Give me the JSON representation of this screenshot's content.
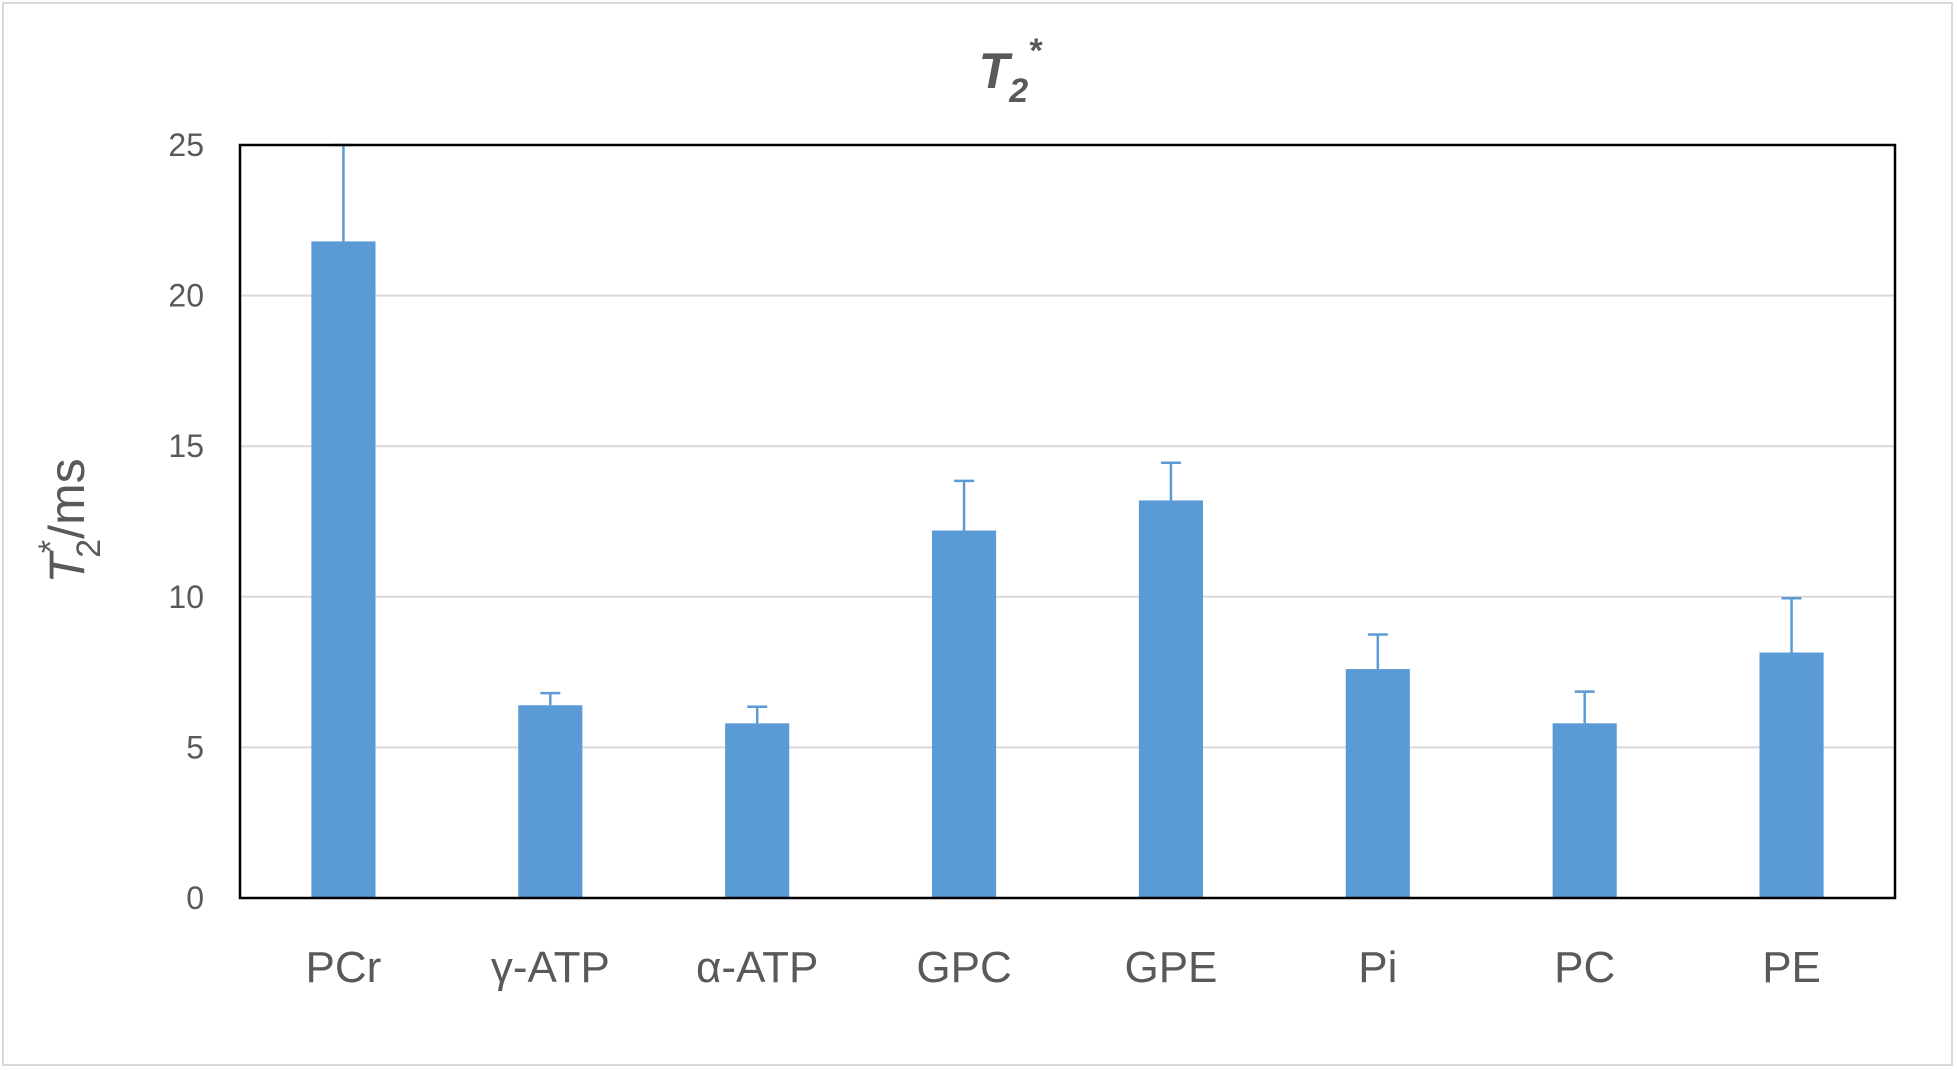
{
  "chart_data": {
    "type": "bar",
    "title": {
      "main": "T",
      "sub": "2",
      "sup": "*"
    },
    "ylabel": {
      "main": "T",
      "sub": "2",
      "sup": "*",
      "unit": "/ms"
    },
    "xlabel": "",
    "ylim": [
      0,
      25
    ],
    "yticks": [
      "0",
      "5",
      "10",
      "15",
      "20",
      "25"
    ],
    "grid": true,
    "categories": [
      "PCr",
      "γ-ATP",
      "α-ATP",
      "GPC",
      "GPE",
      "Pi",
      "PC",
      "PE"
    ],
    "values": [
      21.8,
      6.4,
      5.8,
      12.2,
      13.2,
      7.6,
      5.8,
      8.15
    ],
    "errors": [
      3.2,
      0.4,
      0.55,
      1.65,
      1.25,
      1.15,
      1.05,
      1.8
    ],
    "bar_color": "#5b9bd5",
    "gridline_color": "#d9d9d9",
    "text_color": "#595959"
  }
}
